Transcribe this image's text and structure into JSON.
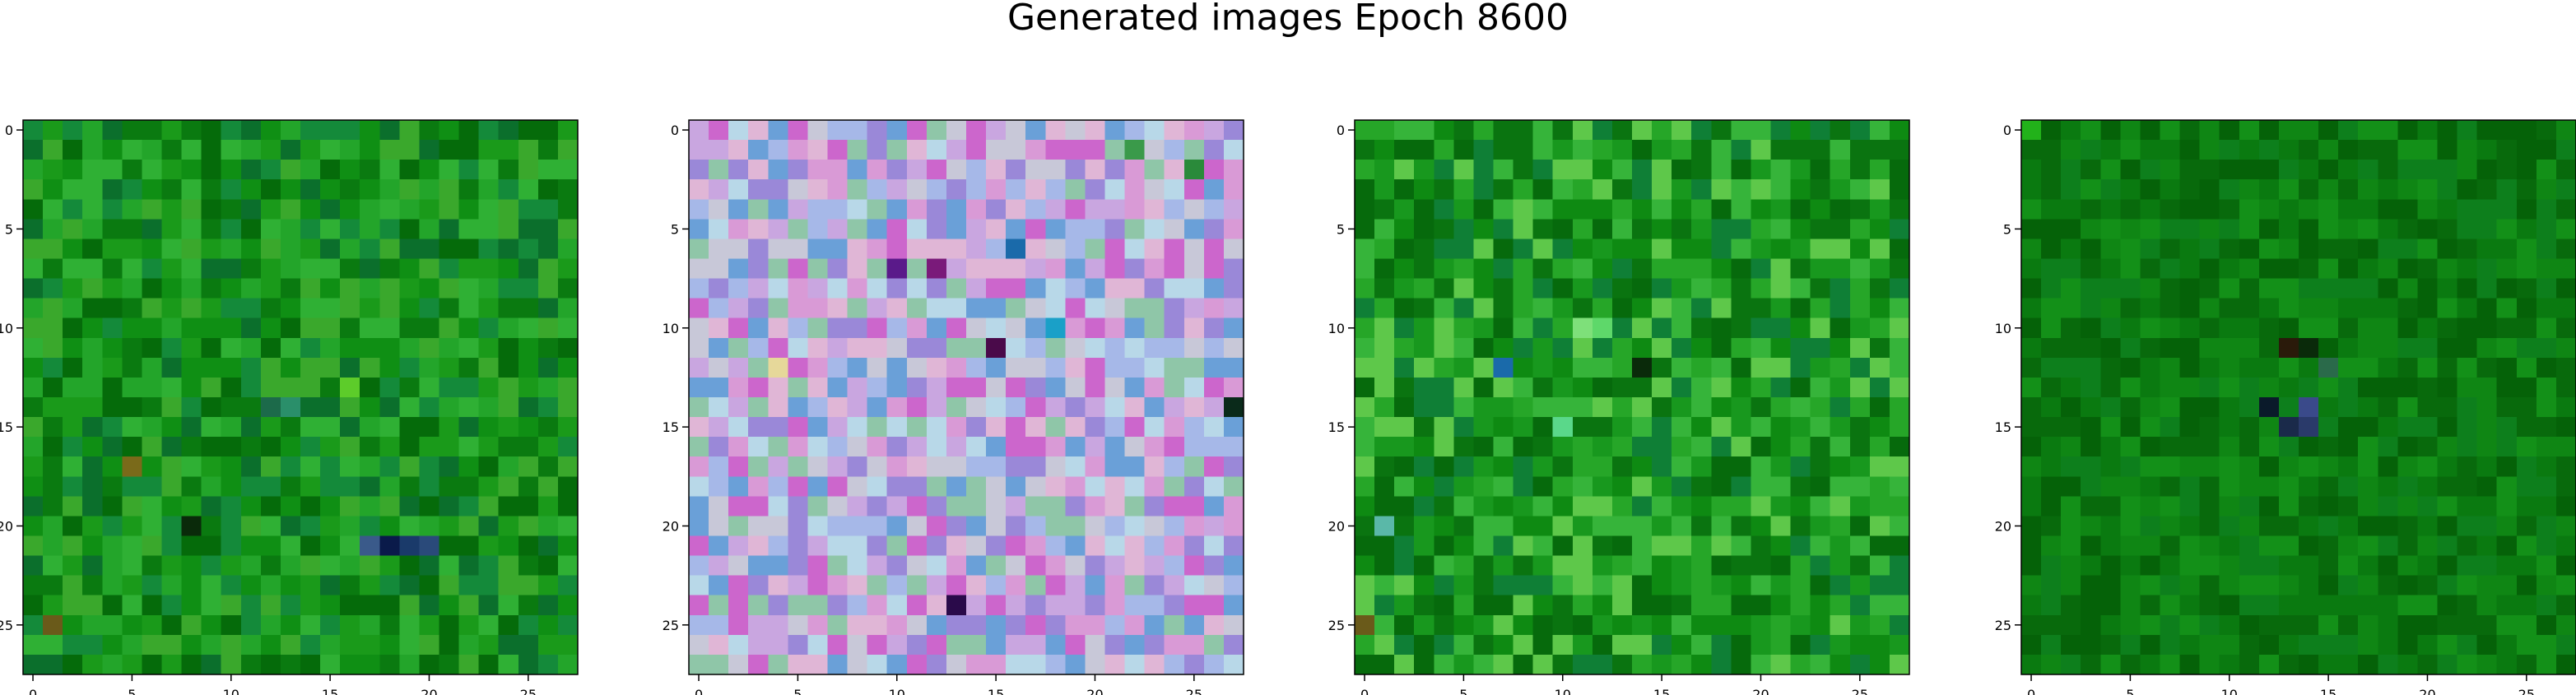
{
  "title": "Generated images Epoch 8600",
  "panels": [
    {
      "grid": 28,
      "x_ticks": [
        "0",
        "5",
        "10",
        "15",
        "20",
        "25"
      ],
      "y_ticks": [
        "0",
        "5",
        "10",
        "15",
        "20",
        "25"
      ],
      "palette": [
        "#0f8f14",
        "#1a9a1a",
        "#0a7a10",
        "#23a52a",
        "#056b0a",
        "#2fb034",
        "#148a3a",
        "#0b6f2c",
        "#3aa82c"
      ],
      "accents": [
        {
          "row": 14,
          "col": 13,
          "color": "#2a8f6a"
        },
        {
          "row": 14,
          "col": 12,
          "color": "#1c6a4a"
        },
        {
          "row": 13,
          "col": 16,
          "color": "#5dcc2a"
        },
        {
          "row": 21,
          "col": 18,
          "color": "#0a1a4a"
        },
        {
          "row": 21,
          "col": 17,
          "color": "#3a5a8a"
        },
        {
          "row": 21,
          "col": 19,
          "color": "#1a3a6a"
        },
        {
          "row": 21,
          "col": 20,
          "color": "#2a4a7a"
        },
        {
          "row": 20,
          "col": 8,
          "color": "#0a2a0a"
        },
        {
          "row": 17,
          "col": 5,
          "color": "#7a6a1a"
        },
        {
          "row": 25,
          "col": 1,
          "color": "#6a5a1a"
        }
      ]
    },
    {
      "grid": 28,
      "x_ticks": [
        "0",
        "5",
        "10",
        "15",
        "20",
        "25"
      ],
      "y_ticks": [
        "0",
        "5",
        "10",
        "15",
        "20",
        "25"
      ],
      "palette": [
        "#c9a6e0",
        "#d99ad6",
        "#a6b8e8",
        "#c8c8d8",
        "#8fc6a8",
        "#e0b6d6",
        "#9a88d8",
        "#b8d8e8",
        "#cc66cc",
        "#6aa0d8"
      ],
      "accents": [
        {
          "row": 7,
          "col": 10,
          "color": "#5a1a8a"
        },
        {
          "row": 7,
          "col": 12,
          "color": "#7a1a7a"
        },
        {
          "row": 6,
          "col": 16,
          "color": "#1a6aaa"
        },
        {
          "row": 11,
          "col": 15,
          "color": "#4a0a4a"
        },
        {
          "row": 14,
          "col": 27,
          "color": "#0a2a1a"
        },
        {
          "row": 24,
          "col": 13,
          "color": "#2a0a4a"
        },
        {
          "row": 1,
          "col": 22,
          "color": "#3a9a4a"
        },
        {
          "row": 2,
          "col": 25,
          "color": "#2a8a3a"
        },
        {
          "row": 12,
          "col": 4,
          "color": "#e6d89a"
        },
        {
          "row": 10,
          "col": 18,
          "color": "#1aa0c8"
        }
      ]
    },
    {
      "grid": 28,
      "x_ticks": [
        "0",
        "5",
        "10",
        "15",
        "20",
        "25"
      ],
      "y_ticks": [
        "0",
        "5",
        "10",
        "15",
        "20",
        "25"
      ],
      "palette": [
        "#0e8a12",
        "#18981e",
        "#0a7410",
        "#26a628",
        "#066a0c",
        "#36b43a",
        "#0f7f36",
        "#5ec84a"
      ],
      "accents": [
        {
          "row": 10,
          "col": 11,
          "color": "#7ee07a"
        },
        {
          "row": 10,
          "col": 12,
          "color": "#5ed86a"
        },
        {
          "row": 12,
          "col": 14,
          "color": "#0a2a0a"
        },
        {
          "row": 12,
          "col": 7,
          "color": "#1a6aaa"
        },
        {
          "row": 15,
          "col": 10,
          "color": "#5ad88a"
        },
        {
          "row": 20,
          "col": 1,
          "color": "#5ab8a8"
        },
        {
          "row": 25,
          "col": 0,
          "color": "#6a5a1a"
        }
      ]
    },
    {
      "grid": 28,
      "x_ticks": [
        "0",
        "5",
        "10",
        "15",
        "20",
        "25"
      ],
      "y_ticks": [
        "0",
        "5",
        "10",
        "15",
        "20",
        "25"
      ],
      "palette": [
        "#0a7a10",
        "#0f8614",
        "#086a0c",
        "#139018",
        "#0d7f1c",
        "#056208"
      ],
      "accents": [
        {
          "row": 14,
          "col": 12,
          "color": "#0a1a2a"
        },
        {
          "row": 15,
          "col": 13,
          "color": "#1a2a4a"
        },
        {
          "row": 15,
          "col": 14,
          "color": "#2a3a6a"
        },
        {
          "row": 14,
          "col": 14,
          "color": "#3a4a8a"
        },
        {
          "row": 11,
          "col": 13,
          "color": "#2a1a0a"
        },
        {
          "row": 11,
          "col": 14,
          "color": "#0a2a0a"
        },
        {
          "row": 12,
          "col": 15,
          "color": "#2a6a4a"
        },
        {
          "row": 0,
          "col": 0,
          "color": "#22b21a"
        }
      ]
    }
  ]
}
